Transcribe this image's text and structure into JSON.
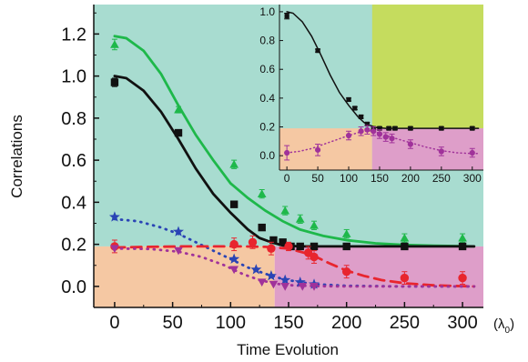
{
  "colors": {
    "teal_bg": "#a8dcd0",
    "peach_bg": "#f5c8a3",
    "pink_bg": "#de9ec9",
    "olive_bg": "#c5dc5e",
    "green": "#1eb84a",
    "black": "#111111",
    "blue": "#2a44b5",
    "red": "#e8252e",
    "purple": "#a0329a"
  },
  "chart_data": [
    {
      "type": "scatter",
      "xlabel": "Time Evolution",
      "ylabel": "Correlations",
      "xunit": "(λ0)",
      "xlim": [
        -18,
        318
      ],
      "ylim": [
        -0.1,
        1.34
      ],
      "xticks": [
        0,
        50,
        100,
        150,
        200,
        250,
        300
      ],
      "yticks": [
        0.0,
        0.2,
        0.4,
        0.6,
        0.8,
        1.0,
        1.2
      ],
      "xtick_labels": [
        "0",
        "50",
        "100",
        "150",
        "200",
        "250",
        "300"
      ],
      "ytick_labels": [
        "0.0",
        "0.2",
        "0.4",
        "0.6",
        "0.8",
        "1.0",
        "1.2"
      ],
      "regions": {
        "x_split": 138,
        "y_split": 0.19
      },
      "series": [
        {
          "marker": "triangle",
          "color": "#1eb84a",
          "x": [
            0,
            55,
            103,
            127,
            147,
            160,
            172,
            200,
            250,
            300
          ],
          "y": [
            1.15,
            0.84,
            0.58,
            0.44,
            0.36,
            0.32,
            0.29,
            0.25,
            0.23,
            0.23
          ],
          "err": [
            0.025,
            0.015,
            0.02,
            0.02,
            0.02,
            0.02,
            0.02,
            0.02,
            0.02,
            0.02
          ]
        },
        {
          "marker": "square",
          "color": "#111111",
          "x": [
            0,
            55,
            103,
            127,
            137,
            145,
            152,
            160,
            172,
            200,
            250,
            300
          ],
          "y": [
            0.97,
            0.73,
            0.39,
            0.28,
            0.22,
            0.21,
            0.19,
            0.19,
            0.19,
            0.19,
            0.19,
            0.19
          ],
          "err": [
            0.02,
            0.01,
            0.01,
            0.01,
            0.01,
            0.01,
            0.01,
            0.01,
            0.01,
            0.01,
            0.01,
            0.01
          ]
        },
        {
          "marker": "star",
          "color": "#2a44b5",
          "x": [
            0,
            55,
            103,
            122,
            135,
            147,
            160,
            172
          ],
          "y": [
            0.33,
            0.26,
            0.13,
            0.08,
            0.05,
            0.03,
            0.02,
            0.01
          ]
        },
        {
          "marker": "circle",
          "color": "#e8252e",
          "x": [
            0,
            103,
            119,
            135,
            150,
            167,
            172,
            200,
            250,
            300
          ],
          "y": [
            0.19,
            0.2,
            0.21,
            0.18,
            0.19,
            0.16,
            0.14,
            0.07,
            0.04,
            0.04
          ],
          "err": [
            0.03,
            0.03,
            0.03,
            0.03,
            0.02,
            0.03,
            0.03,
            0.03,
            0.03,
            0.03
          ]
        },
        {
          "marker": "triangle-down",
          "color": "#a0329a",
          "x": [
            0,
            55,
            103,
            127,
            137,
            147,
            162,
            172
          ],
          "y": [
            0.18,
            0.17,
            0.08,
            0.02,
            0.01,
            0.0,
            0.0,
            0.0
          ]
        }
      ],
      "curves": [
        {
          "color": "#1eb84a",
          "style": "solid",
          "x": [
            0,
            10,
            25,
            40,
            55,
            70,
            85,
            100,
            115,
            130,
            145,
            160,
            180,
            200,
            225,
            250,
            275,
            300,
            310
          ],
          "y": [
            1.19,
            1.18,
            1.12,
            1.01,
            0.86,
            0.72,
            0.6,
            0.49,
            0.42,
            0.36,
            0.31,
            0.27,
            0.24,
            0.22,
            0.205,
            0.197,
            0.193,
            0.191,
            0.19
          ]
        },
        {
          "color": "#111111",
          "style": "solid",
          "x": [
            0,
            10,
            25,
            40,
            55,
            70,
            85,
            100,
            115,
            125,
            135,
            145,
            160,
            200,
            250,
            300,
            310
          ],
          "y": [
            1.0,
            0.99,
            0.93,
            0.83,
            0.7,
            0.56,
            0.44,
            0.35,
            0.27,
            0.23,
            0.21,
            0.195,
            0.19,
            0.19,
            0.19,
            0.19,
            0.19
          ]
        },
        {
          "color": "#2a44b5",
          "style": "dotted",
          "x": [
            0,
            20,
            40,
            55,
            70,
            85,
            100,
            115,
            130,
            145,
            160,
            175,
            200,
            250,
            300,
            310
          ],
          "y": [
            0.32,
            0.31,
            0.28,
            0.25,
            0.21,
            0.17,
            0.13,
            0.09,
            0.06,
            0.035,
            0.02,
            0.01,
            0.003,
            0.0,
            0.0,
            0.0
          ]
        },
        {
          "color": "#e8252e",
          "style": "dashed",
          "x": [
            0,
            30,
            60,
            90,
            110,
            130,
            150,
            170,
            185,
            200,
            215,
            230,
            250,
            275,
            300,
            310
          ],
          "y": [
            0.185,
            0.188,
            0.19,
            0.19,
            0.19,
            0.188,
            0.18,
            0.15,
            0.11,
            0.075,
            0.05,
            0.03,
            0.015,
            0.005,
            0.001,
            0.0
          ]
        },
        {
          "color": "#a0329a",
          "style": "dotted",
          "x": [
            0,
            30,
            55,
            75,
            95,
            110,
            125,
            140,
            155,
            175,
            200,
            250,
            300,
            310
          ],
          "y": [
            0.18,
            0.178,
            0.165,
            0.14,
            0.1,
            0.06,
            0.03,
            0.012,
            0.004,
            0.001,
            0.0,
            0.0,
            0.0,
            0.0
          ]
        }
      ]
    },
    {
      "type": "scatter",
      "xlim": [
        -12,
        318
      ],
      "ylim": [
        -0.1,
        1.05
      ],
      "xticks": [
        0,
        50,
        100,
        150,
        200,
        250,
        300
      ],
      "yticks": [
        0.0,
        0.2,
        0.4,
        0.6,
        0.8,
        1.0
      ],
      "xtick_labels": [
        "0",
        "50",
        "100",
        "150",
        "200",
        "250",
        "300"
      ],
      "ytick_labels": [
        "0.0",
        "0.2",
        "0.4",
        "0.6",
        "0.8",
        "1.0"
      ],
      "regions": {
        "x_split": 138,
        "y_split": 0.19
      },
      "series": [
        {
          "marker": "square",
          "color": "#111111",
          "x": [
            0,
            50,
            100,
            110,
            120,
            130,
            140,
            150,
            165,
            175,
            200,
            250,
            300
          ],
          "y": [
            0.97,
            0.73,
            0.39,
            0.33,
            0.27,
            0.22,
            0.19,
            0.19,
            0.19,
            0.19,
            0.19,
            0.19,
            0.19
          ],
          "err": [
            0.02,
            0.01,
            0.01,
            0.01,
            0.01,
            0.01,
            0.01,
            0.01,
            0.01,
            0.01,
            0.01,
            0.01,
            0.01
          ]
        },
        {
          "marker": "circle",
          "color": "#a0329a",
          "x": [
            0,
            50,
            100,
            120,
            130,
            140,
            150,
            160,
            170,
            200,
            250,
            300
          ],
          "y": [
            0.02,
            0.04,
            0.14,
            0.17,
            0.18,
            0.17,
            0.15,
            0.13,
            0.12,
            0.08,
            0.03,
            0.02
          ],
          "err": [
            0.05,
            0.04,
            0.03,
            0.03,
            0.03,
            0.03,
            0.03,
            0.03,
            0.03,
            0.03,
            0.03,
            0.03
          ]
        }
      ],
      "curves": [
        {
          "color": "#111111",
          "style": "solid",
          "x": [
            0,
            10,
            25,
            40,
            55,
            70,
            85,
            100,
            115,
            125,
            135,
            145,
            160,
            200,
            250,
            300,
            310
          ],
          "y": [
            1.0,
            0.99,
            0.93,
            0.83,
            0.7,
            0.56,
            0.44,
            0.35,
            0.27,
            0.23,
            0.21,
            0.195,
            0.19,
            0.19,
            0.19,
            0.19,
            0.19
          ]
        },
        {
          "color": "#a0329a",
          "style": "dotted",
          "x": [
            0,
            20,
            40,
            60,
            80,
            100,
            115,
            130,
            140,
            150,
            165,
            180,
            200,
            225,
            250,
            275,
            300,
            310
          ],
          "y": [
            0.02,
            0.03,
            0.05,
            0.08,
            0.11,
            0.14,
            0.16,
            0.175,
            0.17,
            0.155,
            0.135,
            0.115,
            0.09,
            0.06,
            0.035,
            0.02,
            0.015,
            0.015
          ]
        }
      ]
    }
  ]
}
